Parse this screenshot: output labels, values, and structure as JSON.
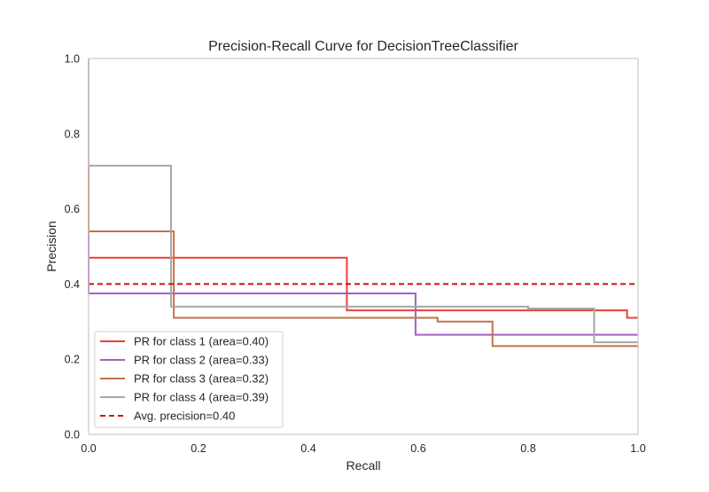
{
  "chart_data": {
    "type": "line",
    "title": "Precision-Recall Curve for DecisionTreeClassifier",
    "xlabel": "Recall",
    "ylabel": "Precision",
    "xlim": [
      0.0,
      1.0
    ],
    "ylim": [
      0.0,
      1.0
    ],
    "xticks": [
      "0.0",
      "0.2",
      "0.4",
      "0.6",
      "0.8",
      "1.0"
    ],
    "yticks": [
      "0.0",
      "0.2",
      "0.4",
      "0.6",
      "0.8",
      "1.0"
    ],
    "grid": false,
    "legend_position": "lower-left",
    "series": [
      {
        "name": "PR for class 1 (area=0.40)",
        "color": "#e8403a",
        "style": "step",
        "points": [
          [
            0.0,
            1.0
          ],
          [
            0.0,
            0.47
          ],
          [
            0.47,
            0.47
          ],
          [
            0.47,
            0.33
          ],
          [
            0.98,
            0.33
          ],
          [
            0.98,
            0.31
          ],
          [
            1.0,
            0.31
          ]
        ]
      },
      {
        "name": "PR for class 2 (area=0.33)",
        "color": "#a45fbf",
        "style": "step",
        "points": [
          [
            0.0,
            1.0
          ],
          [
            0.0,
            0.375
          ],
          [
            0.595,
            0.375
          ],
          [
            0.595,
            0.265
          ],
          [
            1.0,
            0.265
          ]
        ]
      },
      {
        "name": "PR for class 3 (area=0.32)",
        "color": "#c4714a",
        "style": "step",
        "points": [
          [
            0.0,
            1.0
          ],
          [
            0.0,
            0.54
          ],
          [
            0.155,
            0.54
          ],
          [
            0.155,
            0.31
          ],
          [
            0.635,
            0.31
          ],
          [
            0.635,
            0.3
          ],
          [
            0.735,
            0.3
          ],
          [
            0.735,
            0.235
          ],
          [
            1.0,
            0.235
          ]
        ]
      },
      {
        "name": "PR for class 4 (area=0.39)",
        "color": "#a8a8a8",
        "style": "step",
        "points": [
          [
            0.0,
            1.0
          ],
          [
            0.0,
            0.715
          ],
          [
            0.15,
            0.715
          ],
          [
            0.15,
            0.34
          ],
          [
            0.8,
            0.34
          ],
          [
            0.8,
            0.335
          ],
          [
            0.92,
            0.335
          ],
          [
            0.92,
            0.245
          ],
          [
            1.0,
            0.245
          ]
        ]
      },
      {
        "name": "Avg. precision=0.40",
        "color": "#d10f0f",
        "style": "dashed",
        "points": [
          [
            0.0,
            0.4
          ],
          [
            1.0,
            0.4
          ]
        ]
      }
    ]
  }
}
